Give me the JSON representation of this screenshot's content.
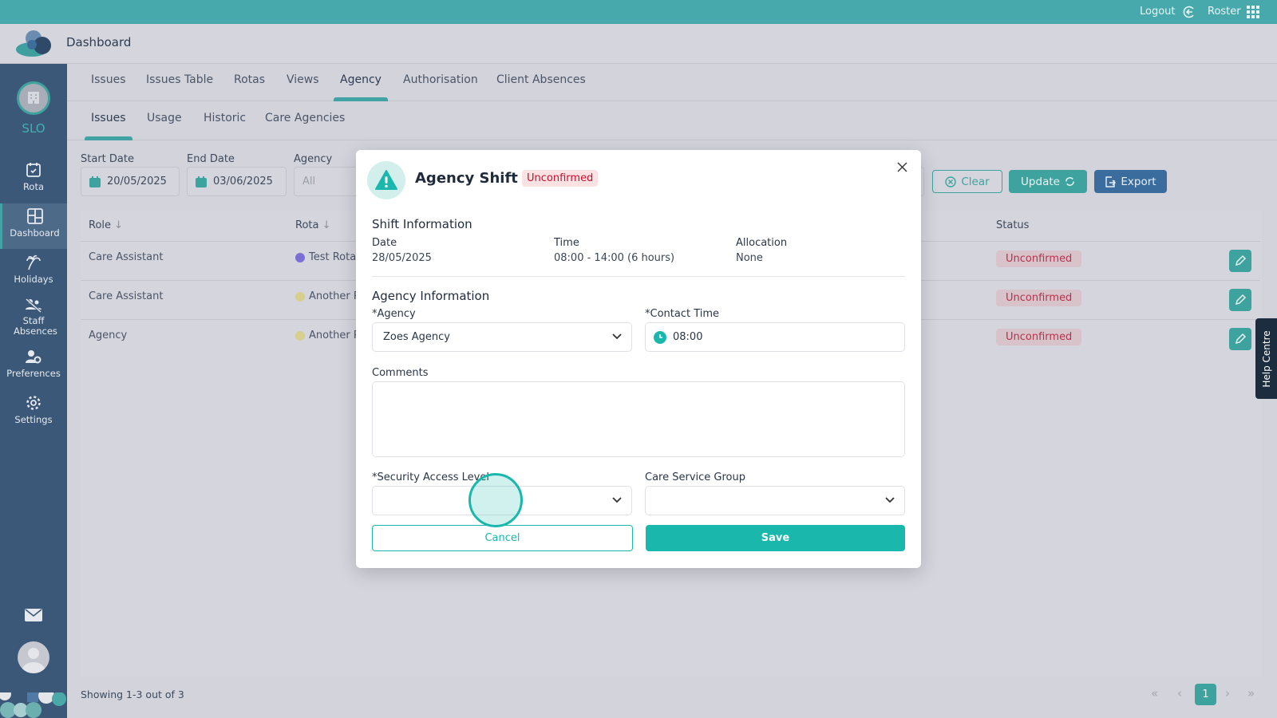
{
  "topbar": {
    "logout": "Logout",
    "roster": "Roster",
    "icons": [
      "logout-arrow-icon",
      "grid-apps-icon"
    ]
  },
  "header": {
    "title": "Dashboard"
  },
  "sidebar": {
    "org": "SLO",
    "items": [
      {
        "label": "Rota",
        "icon": "calendar-check-icon"
      },
      {
        "label": "Dashboard",
        "icon": "dashboard-grid-icon",
        "active": true
      },
      {
        "label": "Holidays",
        "icon": "palm-tree-icon"
      },
      {
        "label": "Staff Absences",
        "icon": "users-off-icon"
      },
      {
        "label": "Preferences",
        "icon": "user-gear-icon"
      },
      {
        "label": "Settings",
        "icon": "gear-icon"
      }
    ]
  },
  "tabs": [
    "Issues",
    "Issues Table",
    "Rotas",
    "Views",
    "Agency",
    "Authorisation",
    "Client Absences"
  ],
  "active_tab": "Agency",
  "subtabs": [
    "Issues",
    "Usage",
    "Historic",
    "Care Agencies"
  ],
  "active_subtab": "Issues",
  "filters": {
    "start_label": "Start Date",
    "start_value": "20/05/2025",
    "end_label": "End Date",
    "end_value": "03/06/2025",
    "agency_label": "Agency",
    "agency_placeholder": "All",
    "clear": "Clear",
    "update": "Update",
    "export": "Export"
  },
  "table": {
    "headers": {
      "role": "Role",
      "rota": "Rota",
      "status": "Status"
    },
    "rows": [
      {
        "role": "Care Assistant",
        "rota": "Test Rota",
        "rota_color": "#7b6fd6",
        "status": "Unconfirmed"
      },
      {
        "role": "Care Assistant",
        "rota": "Another R",
        "rota_color": "#d6cf8e",
        "status": "Unconfirmed"
      },
      {
        "role": "Agency",
        "rota": "Another R",
        "rota_color": "#d6cf8e",
        "status": "Unconfirmed"
      }
    ]
  },
  "footer": {
    "showing": "Showing 1-3 out of 3",
    "page": "1"
  },
  "help": "Help Centre",
  "modal": {
    "title": "Agency Shift",
    "status": "Unconfirmed",
    "shift_heading": "Shift Information",
    "date_label": "Date",
    "date": "28/05/2025",
    "time_label": "Time",
    "time": "08:00 - 14:00 (6 hours)",
    "alloc_label": "Allocation",
    "alloc": "None",
    "agency_heading": "Agency Information",
    "agency_label": "*Agency",
    "agency_value": "Zoes Agency",
    "contact_label": "*Contact Time",
    "contact_value": "08:00",
    "comments_label": "Comments",
    "security_label": "*Security Access Level",
    "csg_label": "Care Service Group",
    "cancel": "Cancel",
    "save": "Save"
  },
  "colors": {
    "accent": "#1ab7ad",
    "topbar": "#48a9ad",
    "sidebar": "#3b5878",
    "export": "#3a6d9e",
    "danger": "#c8102e"
  }
}
